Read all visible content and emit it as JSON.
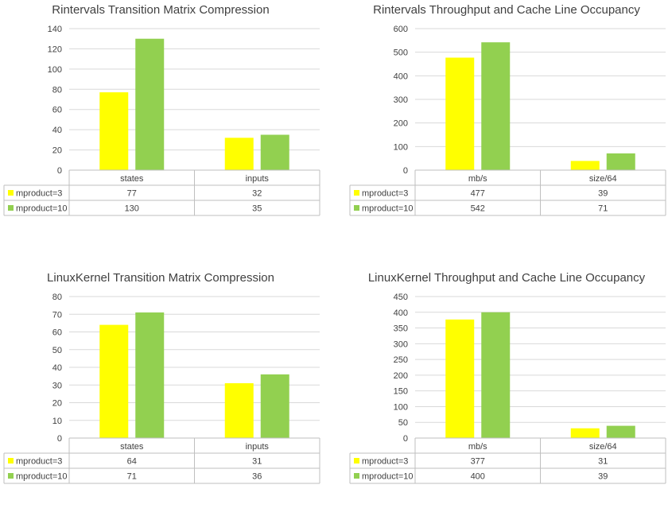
{
  "colors": {
    "series_a": "#ffff00",
    "series_b": "#92d050",
    "grid": "#d9d9d9",
    "border": "#bfbfbf"
  },
  "chart_data": [
    {
      "type": "bar",
      "title": "Rintervals Transition Matrix Compression",
      "categories": [
        "states",
        "inputs"
      ],
      "series": [
        {
          "name": "mproduct=3",
          "values": [
            77,
            32
          ]
        },
        {
          "name": "mproduct=10",
          "values": [
            130,
            35
          ]
        }
      ],
      "ylim": [
        0,
        140
      ],
      "yticks": [
        0,
        20,
        40,
        60,
        80,
        100,
        120,
        140
      ],
      "grid": true,
      "legend": "data-table"
    },
    {
      "type": "bar",
      "title": "Rintervals Throughput and Cache Line Occupancy",
      "categories": [
        "mb/s",
        "size/64"
      ],
      "series": [
        {
          "name": "mproduct=3",
          "values": [
            477,
            39
          ]
        },
        {
          "name": "mproduct=10",
          "values": [
            542,
            71
          ]
        }
      ],
      "ylim": [
        0,
        600
      ],
      "yticks": [
        0,
        100,
        200,
        300,
        400,
        500,
        600
      ],
      "grid": true,
      "legend": "data-table"
    },
    {
      "type": "bar",
      "title": "LinuxKernel Transition Matrix Compression",
      "categories": [
        "states",
        "inputs"
      ],
      "series": [
        {
          "name": "mproduct=3",
          "values": [
            64,
            31
          ]
        },
        {
          "name": "mproduct=10",
          "values": [
            71,
            36
          ]
        }
      ],
      "ylim": [
        0,
        80
      ],
      "yticks": [
        0,
        10,
        20,
        30,
        40,
        50,
        60,
        70,
        80
      ],
      "grid": true,
      "legend": "data-table"
    },
    {
      "type": "bar",
      "title": "LinuxKernel Throughput and Cache Line Occupancy",
      "categories": [
        "mb/s",
        "size/64"
      ],
      "series": [
        {
          "name": "mproduct=3",
          "values": [
            377,
            31
          ]
        },
        {
          "name": "mproduct=10",
          "values": [
            400,
            39
          ]
        }
      ],
      "ylim": [
        0,
        450
      ],
      "yticks": [
        0,
        50,
        100,
        150,
        200,
        250,
        300,
        350,
        400,
        450
      ],
      "grid": true,
      "legend": "data-table"
    }
  ]
}
